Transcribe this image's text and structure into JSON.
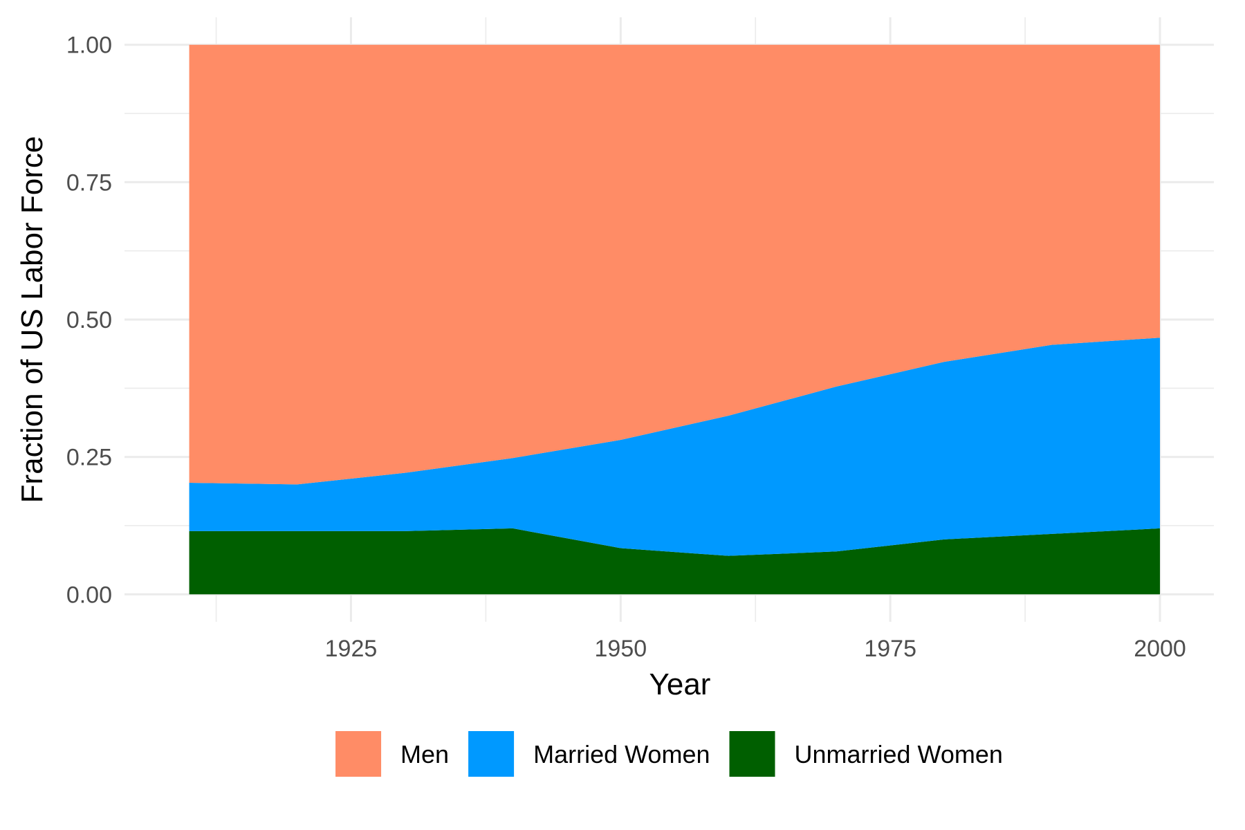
{
  "chart_data": {
    "type": "area",
    "stacked": true,
    "normalized": true,
    "title": "",
    "xlabel": "Year",
    "ylabel": "Fraction of US Labor Force",
    "x": [
      1910,
      1920,
      1930,
      1940,
      1950,
      1960,
      1970,
      1980,
      1990,
      2000
    ],
    "xlim": [
      1904,
      2005
    ],
    "ylim": [
      -0.05,
      1.05
    ],
    "xticks": [
      1925,
      1950,
      1975,
      2000
    ],
    "xtick_labels": [
      "1925",
      "1950",
      "1975",
      "2000"
    ],
    "yticks": [
      0,
      0.25,
      0.5,
      0.75,
      1.0
    ],
    "ytick_labels": [
      "0.00",
      "0.25",
      "0.50",
      "0.75",
      "1.00"
    ],
    "grid": true,
    "legend_position": "bottom",
    "series": [
      {
        "name": "Unmarried Women",
        "color": "#005f00",
        "values": [
          0.115,
          0.115,
          0.115,
          0.12,
          0.084,
          0.07,
          0.078,
          0.1,
          0.11,
          0.12
        ]
      },
      {
        "name": "Married Women",
        "color": "#0099ff",
        "values": [
          0.088,
          0.085,
          0.106,
          0.128,
          0.197,
          0.255,
          0.3,
          0.323,
          0.344,
          0.347
        ]
      },
      {
        "name": "Men",
        "color": "#ff8c66",
        "values": [
          0.797,
          0.8,
          0.779,
          0.752,
          0.719,
          0.675,
          0.622,
          0.577,
          0.546,
          0.533
        ]
      }
    ],
    "legend_order": [
      "Men",
      "Married Women",
      "Unmarried Women"
    ]
  }
}
